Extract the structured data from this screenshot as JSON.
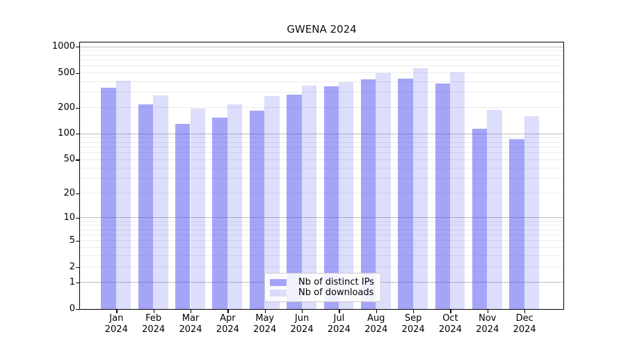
{
  "figure": {
    "background": "#ffffff"
  },
  "chart_data": {
    "type": "bar",
    "title": "GWENA 2024",
    "categories": [
      "Jan",
      "Feb",
      "Mar",
      "Apr",
      "May",
      "Jun",
      "Jul",
      "Aug",
      "Sep",
      "Oct",
      "Nov",
      "Dec"
    ],
    "category_year": "2024",
    "series": [
      {
        "name": "Nb of distinct IPs",
        "color": "rgba(75,75,240,0.50)",
        "values": [
          345,
          220,
          130,
          155,
          186,
          286,
          355,
          425,
          438,
          380,
          115,
          88
        ]
      },
      {
        "name": "Nb of downloads",
        "color": "rgba(75,75,240,0.19)",
        "values": [
          415,
          278,
          196,
          218,
          276,
          364,
          398,
          500,
          575,
          510,
          191,
          162
        ]
      }
    ],
    "yscale": "log1p",
    "yticks": [
      1000,
      500,
      200,
      100,
      50,
      20,
      10,
      5,
      2,
      1,
      0
    ],
    "ylim": [
      0,
      1110
    ],
    "xlabel": "",
    "ylabel": "",
    "grid": {
      "on": true,
      "major_lines": [
        1,
        10,
        100,
        1000
      ],
      "minor_decades": [
        1,
        10,
        100
      ],
      "major_color": "#bcbcbc",
      "minor_color": "#ebebeb"
    },
    "legend": {
      "position": "lower center",
      "items": [
        "Nb of distinct IPs",
        "Nb of downloads"
      ]
    }
  }
}
